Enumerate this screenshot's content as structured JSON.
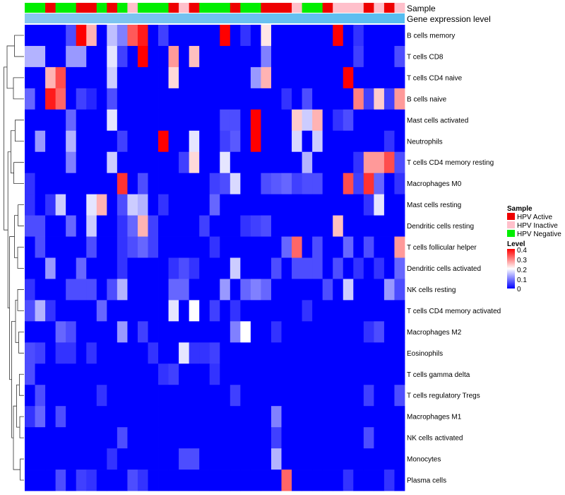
{
  "chart_data": {
    "type": "heatmap",
    "title": "",
    "annotation_tracks": [
      {
        "name": "Sample",
        "type": "categorical"
      },
      {
        "name": "Gene expression level",
        "type": "gradient",
        "colors": [
          "#89c6f0",
          "#56bdf0"
        ]
      }
    ],
    "sample_legend": {
      "title": "Sample",
      "entries": [
        {
          "label": "HPV Active",
          "color": "#ee0000"
        },
        {
          "label": "HPV Inactive",
          "color": "#ffc0cb"
        },
        {
          "label": "HPV Negative",
          "color": "#00ee00"
        }
      ]
    },
    "level_legend": {
      "title": "Level",
      "ticks": [
        "0.4",
        "0.3",
        "0.2",
        "0.1",
        "0"
      ],
      "range": [
        0,
        0.4
      ]
    },
    "sample_groups": [
      "N",
      "N",
      "A",
      "N",
      "N",
      "A",
      "A",
      "N",
      "A",
      "N",
      "I",
      "N",
      "N",
      "N",
      "A",
      "I",
      "A",
      "N",
      "N",
      "N",
      "A",
      "N",
      "N",
      "A",
      "A",
      "A",
      "I",
      "N",
      "N",
      "A",
      "I",
      "I",
      "I",
      "A",
      "I",
      "A",
      "I"
    ],
    "rows": [
      "B cells memory",
      "T cells CD8",
      "T cells CD4 naive",
      "B cells naive",
      "Mast cells activated",
      "Neutrophils",
      "T cells CD4 memory resting",
      "Macrophages M0",
      "Mast cells resting",
      "Dendritic cells resting",
      "T cells follicular helper",
      "Dendritic cells activated",
      "NK cells resting",
      "T cells CD4 memory activated",
      "Macrophages M2",
      "Eosinophils",
      "T cells gamma delta",
      "T cells regulatory  Tregs",
      "Macrophages M1",
      "NK cells activated",
      "Monocytes",
      "Plasma cells"
    ],
    "values": [
      [
        0.0,
        0.0,
        0.0,
        0.0,
        0.06,
        0.4,
        0.26,
        0.0,
        0.15,
        0.1,
        0.33,
        0.38,
        0.0,
        0.05,
        0.0,
        0.0,
        0.0,
        0.0,
        0.0,
        0.4,
        0.0,
        0.04,
        0.0,
        0.22,
        0.0,
        0.0,
        0.0,
        0.0,
        0.0,
        0.0,
        0.4,
        0.0,
        0.04,
        0.0,
        0.0,
        0.0,
        0.0
      ],
      [
        0.14,
        0.14,
        0.0,
        0.0,
        0.12,
        0.12,
        0.0,
        0.0,
        0.18,
        0.05,
        0.0,
        0.4,
        0.0,
        0.0,
        0.28,
        0.0,
        0.25,
        0.0,
        0.0,
        0.0,
        0.0,
        0.0,
        0.0,
        0.1,
        0.0,
        0.0,
        0.0,
        0.0,
        0.0,
        0.0,
        0.0,
        0.0,
        0.05,
        0.0,
        0.0,
        0.0,
        0.06
      ],
      [
        0.0,
        0.0,
        0.26,
        0.34,
        0.0,
        0.0,
        0.0,
        0.0,
        0.16,
        0.0,
        0.0,
        0.0,
        0.0,
        0.0,
        0.23,
        0.0,
        0.0,
        0.0,
        0.0,
        0.0,
        0.0,
        0.0,
        0.12,
        0.26,
        0.0,
        0.0,
        0.0,
        0.0,
        0.0,
        0.0,
        0.0,
        0.4,
        0.0,
        0.0,
        0.0,
        0.0,
        0.0
      ],
      [
        0.08,
        0.0,
        0.38,
        0.32,
        0.0,
        0.05,
        0.03,
        0.0,
        0.06,
        0.0,
        0.0,
        0.0,
        0.0,
        0.0,
        0.0,
        0.0,
        0.0,
        0.0,
        0.0,
        0.0,
        0.0,
        0.0,
        0.0,
        0.0,
        0.0,
        0.04,
        0.0,
        0.06,
        0.0,
        0.0,
        0.0,
        0.0,
        0.3,
        0.05,
        0.24,
        0.05,
        0.28
      ],
      [
        0.0,
        0.0,
        0.0,
        0.0,
        0.08,
        0.0,
        0.0,
        0.0,
        0.18,
        0.0,
        0.0,
        0.0,
        0.0,
        0.0,
        0.0,
        0.0,
        0.0,
        0.0,
        0.0,
        0.06,
        0.06,
        0.0,
        0.4,
        0.0,
        0.0,
        0.0,
        0.24,
        0.16,
        0.26,
        0.0,
        0.04,
        0.06,
        0.0,
        0.0,
        0.0,
        0.0,
        0.0
      ],
      [
        0.0,
        0.12,
        0.0,
        0.0,
        0.14,
        0.0,
        0.0,
        0.0,
        0.0,
        0.05,
        0.0,
        0.0,
        0.0,
        0.4,
        0.0,
        0.0,
        0.18,
        0.0,
        0.0,
        0.05,
        0.07,
        0.0,
        0.4,
        0.0,
        0.0,
        0.0,
        0.17,
        0.0,
        0.16,
        0.0,
        0.0,
        0.0,
        0.0,
        0.0,
        0.0,
        0.04,
        0.0
      ],
      [
        0.0,
        0.0,
        0.0,
        0.0,
        0.1,
        0.0,
        0.0,
        0.0,
        0.16,
        0.0,
        0.0,
        0.0,
        0.0,
        0.0,
        0.0,
        0.05,
        0.23,
        0.0,
        0.0,
        0.18,
        0.0,
        0.0,
        0.0,
        0.0,
        0.0,
        0.0,
        0.0,
        0.14,
        0.0,
        0.0,
        0.0,
        0.0,
        0.04,
        0.28,
        0.28,
        0.34,
        0.06
      ],
      [
        0.04,
        0.0,
        0.0,
        0.0,
        0.0,
        0.0,
        0.0,
        0.0,
        0.0,
        0.36,
        0.0,
        0.06,
        0.0,
        0.0,
        0.0,
        0.0,
        0.0,
        0.0,
        0.05,
        0.06,
        0.17,
        0.0,
        0.0,
        0.06,
        0.07,
        0.08,
        0.05,
        0.06,
        0.06,
        0.0,
        0.0,
        0.34,
        0.05,
        0.36,
        0.08,
        0.0,
        0.04
      ],
      [
        0.04,
        0.0,
        0.04,
        0.16,
        0.0,
        0.0,
        0.18,
        0.26,
        0.0,
        0.06,
        0.16,
        0.14,
        0.0,
        0.04,
        0.0,
        0.0,
        0.0,
        0.0,
        0.08,
        0.0,
        0.0,
        0.0,
        0.0,
        0.0,
        0.0,
        0.0,
        0.0,
        0.0,
        0.0,
        0.0,
        0.0,
        0.0,
        0.0,
        0.04,
        0.18,
        0.0,
        0.0
      ],
      [
        0.06,
        0.06,
        0.0,
        0.0,
        0.08,
        0.0,
        0.16,
        0.0,
        0.0,
        0.04,
        0.08,
        0.26,
        0.05,
        0.0,
        0.0,
        0.0,
        0.0,
        0.05,
        0.0,
        0.0,
        0.0,
        0.04,
        0.05,
        0.06,
        0.0,
        0.0,
        0.0,
        0.0,
        0.0,
        0.0,
        0.25,
        0.0,
        0.0,
        0.0,
        0.0,
        0.0,
        0.0
      ],
      [
        0.0,
        0.06,
        0.0,
        0.0,
        0.0,
        0.0,
        0.06,
        0.0,
        0.0,
        0.04,
        0.06,
        0.08,
        0.05,
        0.0,
        0.0,
        0.0,
        0.0,
        0.0,
        0.04,
        0.0,
        0.0,
        0.0,
        0.0,
        0.0,
        0.0,
        0.08,
        0.32,
        0.0,
        0.06,
        0.0,
        0.0,
        0.08,
        0.0,
        0.06,
        0.0,
        0.0,
        0.28
      ],
      [
        0.0,
        0.0,
        0.12,
        0.0,
        0.0,
        0.08,
        0.0,
        0.0,
        0.0,
        0.04,
        0.0,
        0.0,
        0.0,
        0.0,
        0.04,
        0.06,
        0.04,
        0.0,
        0.0,
        0.0,
        0.16,
        0.0,
        0.0,
        0.0,
        0.06,
        0.0,
        0.06,
        0.06,
        0.06,
        0.0,
        0.06,
        0.0,
        0.04,
        0.0,
        0.04,
        0.0,
        0.08
      ],
      [
        0.04,
        0.0,
        0.0,
        0.0,
        0.06,
        0.06,
        0.06,
        0.0,
        0.06,
        0.14,
        0.0,
        0.0,
        0.0,
        0.0,
        0.08,
        0.08,
        0.0,
        0.0,
        0.0,
        0.12,
        0.0,
        0.08,
        0.1,
        0.08,
        0.0,
        0.0,
        0.0,
        0.0,
        0.0,
        0.06,
        0.0,
        0.16,
        0.0,
        0.0,
        0.0,
        0.12,
        0.06
      ],
      [
        0.06,
        0.14,
        0.04,
        0.0,
        0.0,
        0.0,
        0.0,
        0.08,
        0.0,
        0.0,
        0.0,
        0.0,
        0.0,
        0.0,
        0.18,
        0.0,
        0.2,
        0.0,
        0.05,
        0.0,
        0.04,
        0.0,
        0.0,
        0.0,
        0.0,
        0.0,
        0.0,
        0.04,
        0.0,
        0.0,
        0.0,
        0.0,
        0.0,
        0.0,
        0.0,
        0.0,
        0.0
      ],
      [
        0.0,
        0.0,
        0.0,
        0.08,
        0.06,
        0.0,
        0.0,
        0.0,
        0.0,
        0.12,
        0.0,
        0.05,
        0.0,
        0.0,
        0.0,
        0.0,
        0.0,
        0.0,
        0.0,
        0.0,
        0.1,
        0.2,
        0.0,
        0.0,
        0.04,
        0.0,
        0.0,
        0.0,
        0.0,
        0.0,
        0.0,
        0.0,
        0.0,
        0.04,
        0.06,
        0.0,
        0.0
      ],
      [
        0.06,
        0.05,
        0.0,
        0.04,
        0.04,
        0.0,
        0.04,
        0.0,
        0.0,
        0.0,
        0.0,
        0.0,
        0.04,
        0.0,
        0.0,
        0.18,
        0.04,
        0.04,
        0.05,
        0.0,
        0.0,
        0.0,
        0.0,
        0.0,
        0.0,
        0.0,
        0.0,
        0.0,
        0.0,
        0.0,
        0.0,
        0.0,
        0.0,
        0.0,
        0.0,
        0.0,
        0.0
      ],
      [
        0.06,
        0.0,
        0.0,
        0.0,
        0.0,
        0.0,
        0.0,
        0.0,
        0.0,
        0.0,
        0.0,
        0.0,
        0.0,
        0.04,
        0.05,
        0.0,
        0.0,
        0.0,
        0.04,
        0.0,
        0.0,
        0.0,
        0.0,
        0.0,
        0.0,
        0.0,
        0.0,
        0.0,
        0.0,
        0.0,
        0.0,
        0.0,
        0.0,
        0.0,
        0.0,
        0.0,
        0.0
      ],
      [
        0.0,
        0.06,
        0.0,
        0.0,
        0.0,
        0.0,
        0.0,
        0.04,
        0.0,
        0.0,
        0.0,
        0.0,
        0.0,
        0.0,
        0.0,
        0.0,
        0.0,
        0.0,
        0.0,
        0.0,
        0.05,
        0.0,
        0.0,
        0.0,
        0.0,
        0.0,
        0.0,
        0.0,
        0.0,
        0.0,
        0.0,
        0.0,
        0.0,
        0.05,
        0.0,
        0.0,
        0.06
      ],
      [
        0.04,
        0.08,
        0.0,
        0.06,
        0.0,
        0.0,
        0.0,
        0.0,
        0.0,
        0.0,
        0.0,
        0.0,
        0.0,
        0.0,
        0.0,
        0.0,
        0.0,
        0.0,
        0.0,
        0.0,
        0.0,
        0.0,
        0.0,
        0.0,
        0.1,
        0.0,
        0.0,
        0.0,
        0.0,
        0.0,
        0.0,
        0.0,
        0.0,
        0.0,
        0.0,
        0.0,
        0.0
      ],
      [
        0.0,
        0.0,
        0.0,
        0.0,
        0.0,
        0.0,
        0.0,
        0.0,
        0.0,
        0.06,
        0.0,
        0.0,
        0.0,
        0.0,
        0.0,
        0.0,
        0.0,
        0.0,
        0.0,
        0.0,
        0.0,
        0.0,
        0.0,
        0.0,
        0.05,
        0.0,
        0.0,
        0.0,
        0.0,
        0.0,
        0.0,
        0.0,
        0.0,
        0.06,
        0.0,
        0.0,
        0.0
      ],
      [
        0.0,
        0.0,
        0.0,
        0.0,
        0.0,
        0.0,
        0.0,
        0.0,
        0.04,
        0.0,
        0.0,
        0.0,
        0.0,
        0.0,
        0.0,
        0.06,
        0.06,
        0.0,
        0.0,
        0.0,
        0.0,
        0.0,
        0.0,
        0.0,
        0.14,
        0.0,
        0.0,
        0.0,
        0.0,
        0.0,
        0.0,
        0.0,
        0.0,
        0.0,
        0.0,
        0.0,
        0.0
      ],
      [
        0.0,
        0.0,
        0.0,
        0.06,
        0.0,
        0.05,
        0.04,
        0.0,
        0.0,
        0.0,
        0.06,
        0.04,
        0.0,
        0.0,
        0.0,
        0.0,
        0.0,
        0.0,
        0.0,
        0.0,
        0.0,
        0.0,
        0.0,
        0.0,
        0.0,
        0.32,
        0.0,
        0.0,
        0.0,
        0.0,
        0.0,
        0.04,
        0.0,
        0.0,
        0.0,
        0.04,
        0.0
      ]
    ]
  }
}
